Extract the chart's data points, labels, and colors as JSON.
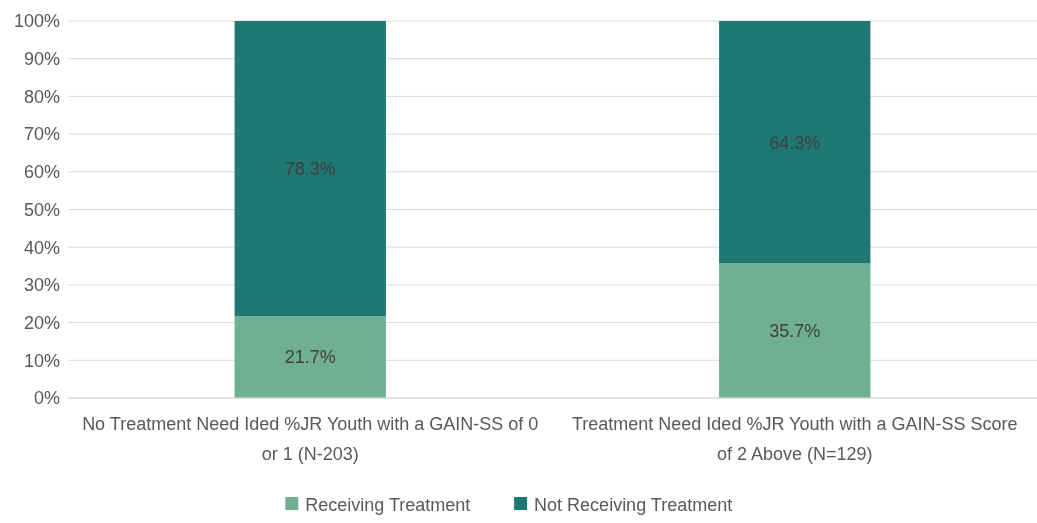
{
  "chart_data": {
    "type": "bar",
    "stacked": true,
    "categories": [
      "No Treatment Need Ided %JR Youth with a GAIN-SS of 0 or 1 (N-203)",
      "Treatment Need Ided %JR Youth with a GAIN-SS Score of 2 Above (N=129)"
    ],
    "series": [
      {
        "name": "Receiving Treatment",
        "color": "#70af93",
        "values": [
          21.7,
          35.7
        ]
      },
      {
        "name": "Not Receiving Treatment",
        "color": "#1f7872",
        "values": [
          78.3,
          64.3
        ]
      }
    ],
    "value_labels": [
      [
        "21.7%",
        "35.7%"
      ],
      [
        "78.3%",
        "64.3%"
      ]
    ],
    "ylim": [
      0,
      100
    ],
    "yticks": [
      {
        "value": 0,
        "label": "0%"
      },
      {
        "value": 10,
        "label": "10%"
      },
      {
        "value": 20,
        "label": "20%"
      },
      {
        "value": 30,
        "label": "30%"
      },
      {
        "value": 40,
        "label": "40%"
      },
      {
        "value": 50,
        "label": "50%"
      },
      {
        "value": 60,
        "label": "60%"
      },
      {
        "value": 70,
        "label": "70%"
      },
      {
        "value": 80,
        "label": "80%"
      },
      {
        "value": 90,
        "label": "90%"
      },
      {
        "value": 100,
        "label": "100%"
      }
    ],
    "grid": "y",
    "legend": "bottom"
  }
}
